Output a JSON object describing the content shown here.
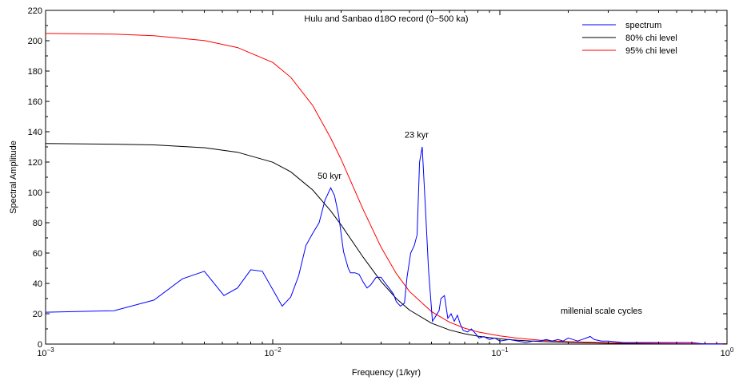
{
  "chart_data": {
    "type": "line",
    "title": "Hulu and Sanbao d18O record (0−500 ka)",
    "xlabel": "Frequency (1/kyr)",
    "ylabel": "Spectral Amplitude",
    "xscale": "log",
    "xlim": [
      0.001,
      1
    ],
    "ylim": [
      0,
      220
    ],
    "yticks": [
      0,
      20,
      40,
      60,
      80,
      100,
      120,
      140,
      160,
      180,
      200,
      220
    ],
    "xticks": [
      {
        "value": 0.001,
        "base": "10",
        "exp": "−3"
      },
      {
        "value": 0.01,
        "base": "10",
        "exp": "−2"
      },
      {
        "value": 0.1,
        "base": "10",
        "exp": "−1"
      },
      {
        "value": 1,
        "base": "10",
        "exp": "0"
      }
    ],
    "grid": false,
    "legend_position": "top-right",
    "annotations": [
      {
        "text": "23 kyr",
        "x": 0.043,
        "y": 136
      },
      {
        "text": "50 kyr",
        "x": 0.0178,
        "y": 109
      },
      {
        "text": "millenial scale cycles",
        "x": 0.28,
        "y": 20
      }
    ],
    "series": [
      {
        "name": "spectrum",
        "color": "#0000ff",
        "x": [
          0.001,
          0.002,
          0.003,
          0.004,
          0.005,
          0.0061,
          0.007,
          0.008,
          0.009,
          0.01,
          0.011,
          0.012,
          0.013,
          0.014,
          0.015,
          0.016,
          0.017,
          0.018,
          0.0187,
          0.0195,
          0.0205,
          0.0215,
          0.022,
          0.023,
          0.024,
          0.025,
          0.026,
          0.027,
          0.0285,
          0.03,
          0.031,
          0.0325,
          0.034,
          0.035,
          0.0365,
          0.038,
          0.039,
          0.0405,
          0.042,
          0.0432,
          0.0443,
          0.0455,
          0.047,
          0.0485,
          0.0505,
          0.052,
          0.054,
          0.055,
          0.057,
          0.059,
          0.061,
          0.063,
          0.065,
          0.067,
          0.069,
          0.072,
          0.075,
          0.078,
          0.081,
          0.085,
          0.09,
          0.095,
          0.1,
          0.11,
          0.12,
          0.13,
          0.14,
          0.15,
          0.16,
          0.17,
          0.18,
          0.19,
          0.2,
          0.21,
          0.22,
          0.23,
          0.24,
          0.25,
          0.26,
          0.28,
          0.3,
          0.35,
          0.4,
          0.5,
          0.6,
          0.7,
          0.8,
          1.0
        ],
        "y": [
          21,
          22,
          29,
          43,
          48,
          32,
          37,
          49,
          48,
          36,
          25,
          31,
          45,
          65,
          73,
          80,
          95,
          103,
          98,
          85,
          61,
          50,
          47,
          47,
          46,
          41,
          37,
          39,
          44,
          44,
          41,
          37,
          33,
          28,
          25,
          27,
          44,
          60,
          65,
          72,
          120,
          130,
          90,
          49,
          15,
          18,
          22,
          30,
          32,
          17,
          20,
          15,
          19,
          13,
          9,
          8,
          10,
          7,
          4,
          5,
          3,
          4,
          2,
          3,
          2,
          1,
          2,
          2,
          3,
          2,
          3,
          2,
          4,
          3,
          2,
          3,
          4,
          5,
          3,
          2,
          2,
          1,
          1,
          1,
          1,
          1,
          0,
          0
        ]
      },
      {
        "name": "80% chi level",
        "color": "#000000",
        "x": [
          0.001,
          0.002,
          0.003,
          0.005,
          0.007,
          0.01,
          0.012,
          0.015,
          0.018,
          0.02,
          0.025,
          0.03,
          0.035,
          0.04,
          0.05,
          0.06,
          0.07,
          0.08,
          0.1,
          0.12,
          0.15,
          0.2,
          0.3,
          0.5,
          1.0
        ],
        "y": [
          132.2,
          131.8,
          131.3,
          129.5,
          126.5,
          119.9,
          113.6,
          101.6,
          87.8,
          78.6,
          57.3,
          41.2,
          30.0,
          22.4,
          13.8,
          9.3,
          6.8,
          5.2,
          3.5,
          2.5,
          1.7,
          1.1,
          0.6,
          0.3,
          0.1
        ]
      },
      {
        "name": "95% chi level",
        "color": "#ff0000",
        "x": [
          0.001,
          0.002,
          0.003,
          0.005,
          0.007,
          0.01,
          0.012,
          0.015,
          0.018,
          0.02,
          0.025,
          0.03,
          0.035,
          0.04,
          0.05,
          0.06,
          0.07,
          0.08,
          0.1,
          0.12,
          0.15,
          0.2,
          0.3,
          0.5,
          1.0
        ],
        "y": [
          204.8,
          204.3,
          203.3,
          200.1,
          195.5,
          185.7,
          175.9,
          157.3,
          135.8,
          121.8,
          88.8,
          63.8,
          46.5,
          34.7,
          21.4,
          14.4,
          10.5,
          8.0,
          5.4,
          3.9,
          2.6,
          1.6,
          0.9,
          0.4,
          0.1
        ]
      }
    ]
  }
}
